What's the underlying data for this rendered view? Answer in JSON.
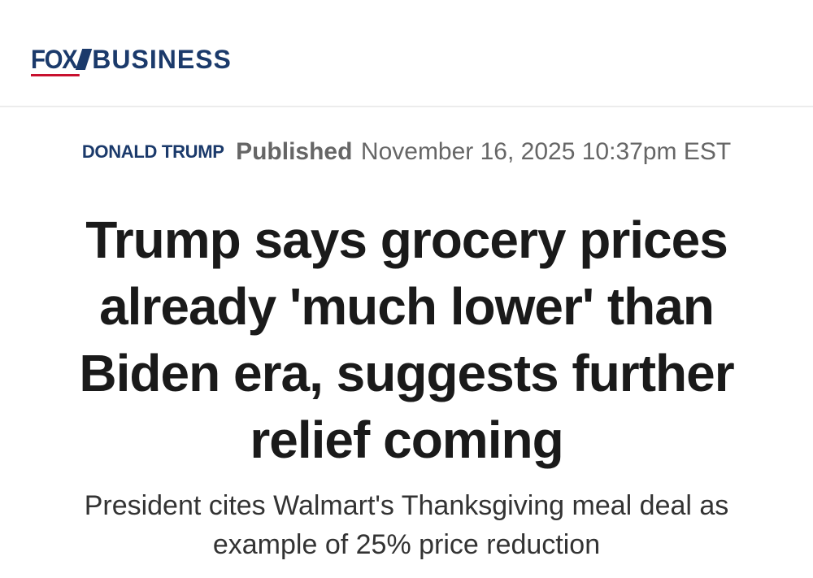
{
  "header": {
    "logo": {
      "fox": "FOX",
      "business": "BUSINESS"
    }
  },
  "article": {
    "category": "DONALD TRUMP",
    "published_label": "Published",
    "published_date": "November 16, 2025 10:37pm EST",
    "headline": "Trump says grocery prices already 'much lower' than Biden era, suggests further relief coming",
    "subheadline": "President cites Walmart's Thanksgiving meal deal as example of 25% price reduction"
  },
  "colors": {
    "brand_navy": "#1b3a6b",
    "brand_red": "#c8102e",
    "meta_gray": "#666666",
    "headline_text": "#1a1a1a"
  }
}
